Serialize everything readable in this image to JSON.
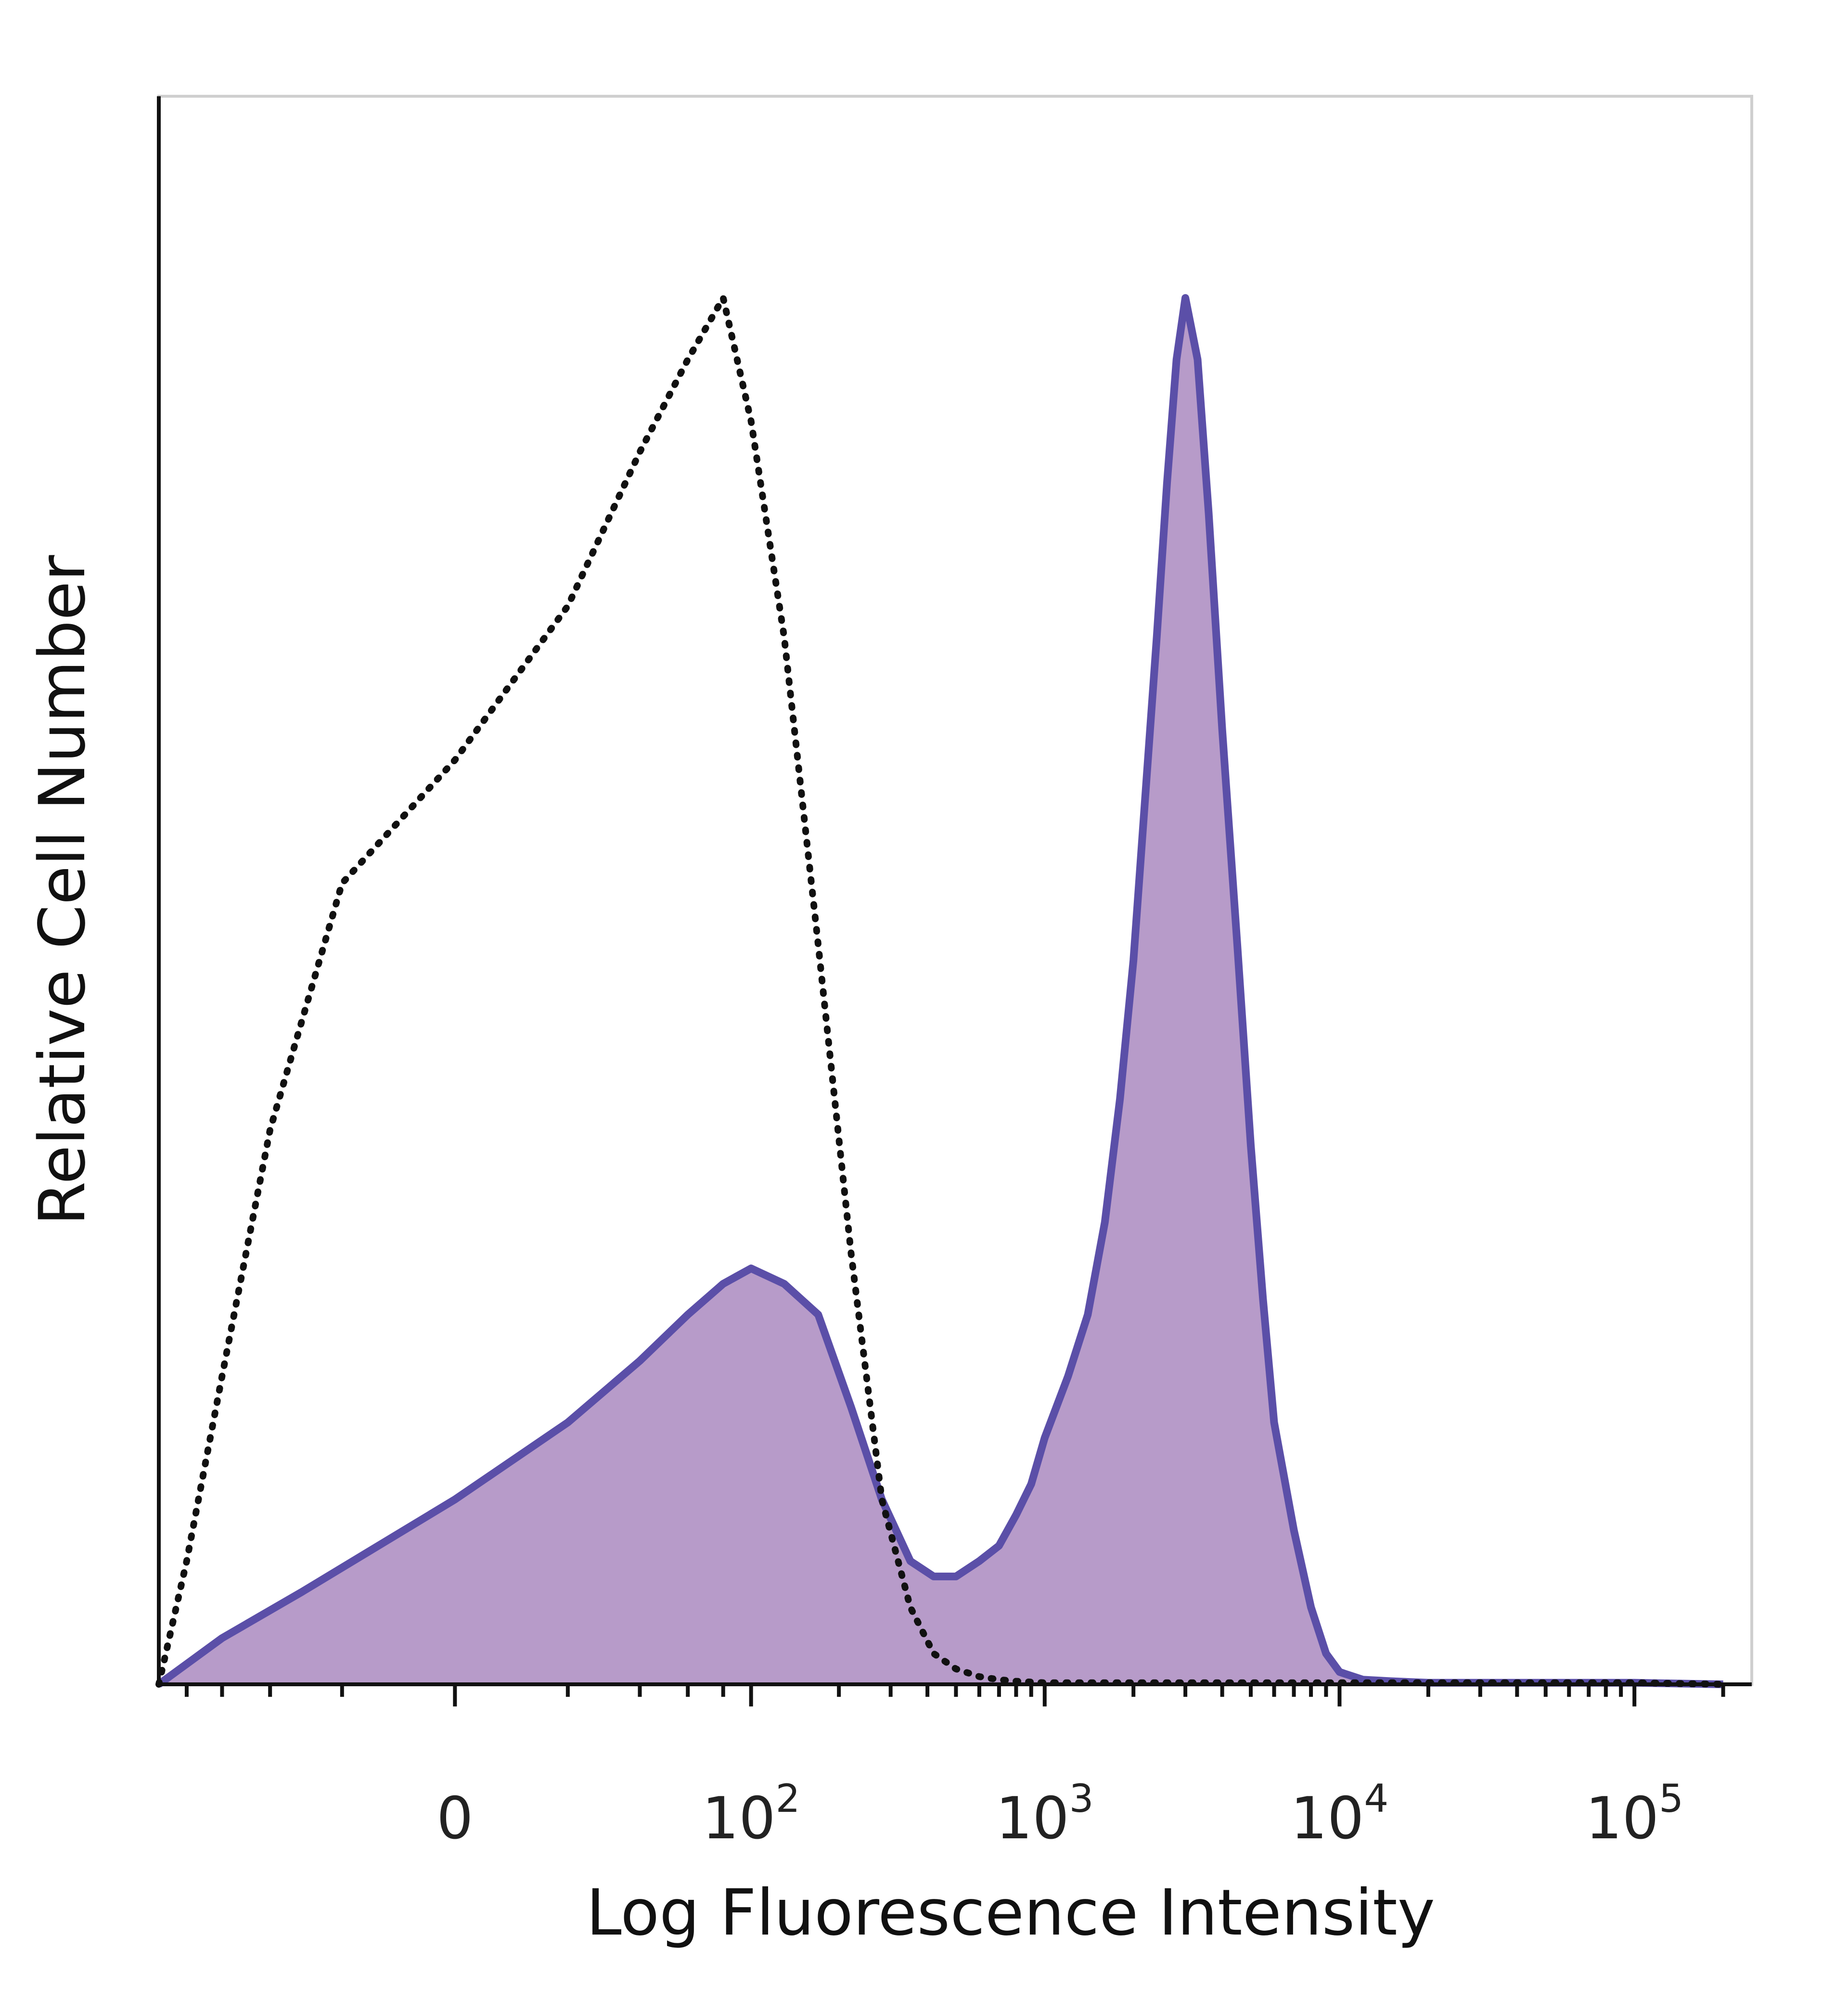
{
  "chart_data": {
    "type": "area",
    "title": "",
    "xlabel": "Log Fluorescence Intensity",
    "ylabel": "Relative Cell Number",
    "x_scale": "biexponential (logicle)",
    "x_tick_labels": [
      {
        "value": 0,
        "label": "0",
        "exp": ""
      },
      {
        "value": 100,
        "label": "10",
        "exp": "2"
      },
      {
        "value": 1000,
        "label": "10",
        "exp": "3"
      },
      {
        "value": 10000,
        "label": "10",
        "exp": "4"
      },
      {
        "value": 100000,
        "label": "10",
        "exp": "5"
      }
    ],
    "xlim": [
      -100,
      250000
    ],
    "ylim": [
      0,
      100
    ],
    "grid": false,
    "legend": "none",
    "colors": {
      "stained_line": "#5b4fa8",
      "stained_fill": "#b79bc9",
      "control_line": "#111111"
    },
    "series": [
      {
        "style": "filled solid line",
        "x": [
          -100,
          -60,
          -30,
          0,
          20,
          40,
          60,
          80,
          100,
          130,
          170,
          220,
          280,
          350,
          420,
          500,
          600,
          700,
          800,
          900,
          1000,
          1200,
          1400,
          1600,
          1800,
          2000,
          2200,
          2400,
          2600,
          2800,
          3000,
          3300,
          3600,
          4000,
          4500,
          5000,
          5500,
          6000,
          7000,
          8000,
          9000,
          10000,
          12000,
          15000,
          20000,
          30000,
          50000,
          100000,
          200000
        ],
        "values": [
          0,
          3,
          6,
          12,
          17,
          21,
          24,
          26,
          27,
          26,
          24,
          18,
          12,
          8,
          7,
          7,
          8,
          9,
          11,
          13,
          16,
          20,
          24,
          30,
          38,
          47,
          58,
          68,
          78,
          86,
          90,
          86,
          76,
          62,
          48,
          35,
          25,
          17,
          10,
          5,
          2,
          0.8,
          0.3,
          0.2,
          0.1,
          0.1,
          0.1,
          0.1,
          0
        ]
      },
      {
        "style": "dotted line",
        "x": [
          -100,
          -80,
          -60,
          -40,
          -20,
          0,
          20,
          40,
          60,
          80,
          100,
          130,
          170,
          220,
          280,
          350,
          420,
          500,
          600,
          700,
          800,
          1000,
          1200,
          1500,
          2000,
          3000,
          5000,
          10000,
          20000,
          50000,
          100000,
          200000
        ],
        "values": [
          0,
          8,
          20,
          36,
          52,
          60,
          70,
          80,
          86,
          90,
          82,
          68,
          48,
          28,
          12,
          5,
          2,
          1,
          0.5,
          0.3,
          0.2,
          0.1,
          0.1,
          0.1,
          0.1,
          0.1,
          0.1,
          0.1,
          0.1,
          0.1,
          0.1,
          0
        ]
      }
    ]
  }
}
